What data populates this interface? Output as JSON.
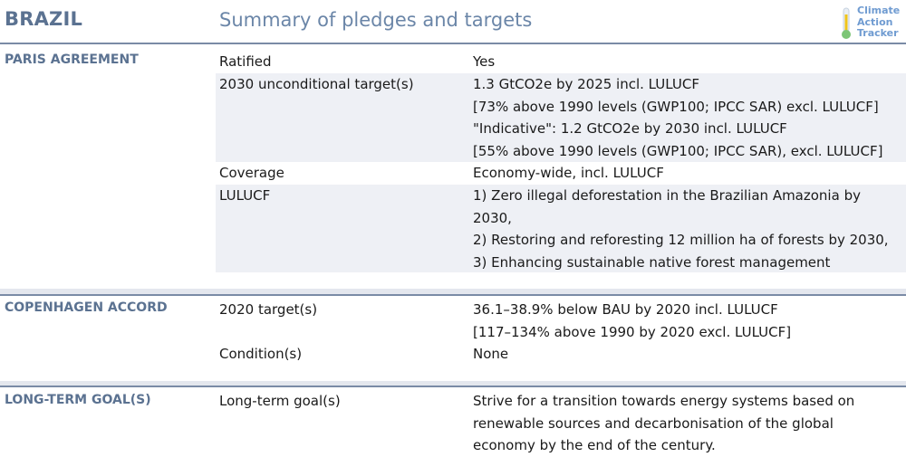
{
  "header": {
    "country": "BRAZIL",
    "title": "Summary of pledges and targets",
    "logo_lines": [
      "Climate",
      "Action",
      "Tracker"
    ]
  },
  "sections": [
    {
      "label": "PARIS AGREEMENT",
      "rows": [
        {
          "label": "Ratified",
          "values": [
            "Yes"
          ]
        },
        {
          "label": "2030 unconditional target(s)",
          "values": [
            "1.3 GtCO2e by 2025 incl. LULUCF",
            "[73% above 1990 levels (GWP100; IPCC SAR) excl. LULUCF]",
            "\"Indicative\": 1.2 GtCO2e by 2030 incl. LULUCF",
            "[55% above 1990 levels (GWP100; IPCC SAR), excl. LULUCF]"
          ]
        },
        {
          "label": "Coverage",
          "values": [
            "Economy-wide, incl. LULUCF"
          ]
        },
        {
          "label": "LULUCF",
          "values": [
            "1) Zero illegal deforestation in the Brazilian Amazonia by",
            "2030,",
            "2) Restoring and reforesting 12 million ha of forests by 2030,",
            "3) Enhancing sustainable native forest management"
          ]
        }
      ]
    },
    {
      "label": "COPENHAGEN ACCORD",
      "rows": [
        {
          "label": "2020 target(s)",
          "values": [
            "36.1–38.9% below BAU by 2020 incl. LULUCF",
            "[117–134% above 1990 by 2020 excl. LULUCF]"
          ]
        },
        {
          "label": "Condition(s)",
          "values": [
            "None"
          ]
        }
      ]
    },
    {
      "label": "LONG-TERM GOAL(S)",
      "rows": [
        {
          "label": "Long-term goal(s)",
          "values": [
            "Strive for a transition towards energy systems based on",
            "renewable sources and decarbonisation of the global",
            "economy by the end of the century."
          ]
        }
      ]
    }
  ],
  "colors": {
    "accent": "#5b7291",
    "title": "#6b86a8",
    "row_shade": "#eef0f5",
    "divider": "#7a8ba6"
  }
}
